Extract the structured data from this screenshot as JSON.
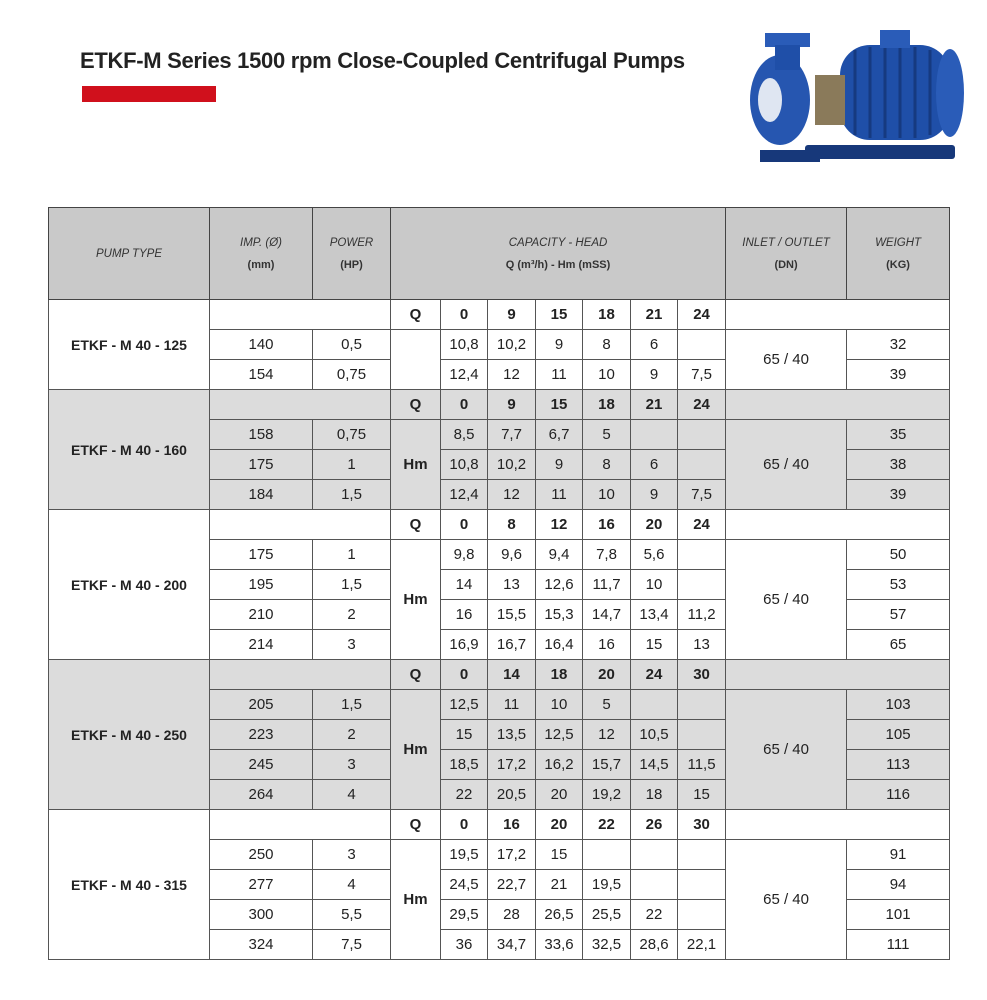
{
  "title": "ETKF-M Series 1500 rpm Close-Coupled Centrifugal Pumps",
  "colors": {
    "accent_bar": "#d0101c",
    "header_bg": "#c9c9c9",
    "alt_group_bg": "#dcdcdc",
    "pump_blue": "#1f4fa8"
  },
  "image": "centrifugal-pump-photo",
  "headers": {
    "pump_type": "PUMP TYPE",
    "imp": "IMP. (Ø)",
    "imp_unit": "(mm)",
    "power": "POWER",
    "power_unit": "(HP)",
    "capacity": "CAPACITY - HEAD",
    "capacity_unit": "Q (m³/h) - Hm (mSS)",
    "inlet": "INLET  / OUTLET",
    "inlet_unit": "(DN)",
    "weight": "WEIGHT",
    "weight_unit": "(KG)"
  },
  "q_label": "Q",
  "hm_label": "Hm",
  "groups": [
    {
      "type": "ETKF - M 40 - 125",
      "hm_shown": false,
      "q": [
        "0",
        "9",
        "15",
        "18",
        "21",
        "24"
      ],
      "dn": "65 / 40",
      "rows": [
        {
          "imp": "140",
          "hp": "0,5",
          "hm": [
            "10,8",
            "10,2",
            "9",
            "8",
            "6",
            ""
          ],
          "kg": "32"
        },
        {
          "imp": "154",
          "hp": "0,75",
          "hm": [
            "12,4",
            "12",
            "11",
            "10",
            "9",
            "7,5"
          ],
          "kg": "39"
        }
      ]
    },
    {
      "type": "ETKF - M 40 - 160",
      "hm_shown": true,
      "q": [
        "0",
        "9",
        "15",
        "18",
        "21",
        "24"
      ],
      "dn": "65 / 40",
      "rows": [
        {
          "imp": "158",
          "hp": "0,75",
          "hm": [
            "8,5",
            "7,7",
            "6,7",
            "5",
            "",
            ""
          ],
          "kg": "35"
        },
        {
          "imp": "175",
          "hp": "1",
          "hm": [
            "10,8",
            "10,2",
            "9",
            "8",
            "6",
            ""
          ],
          "kg": "38"
        },
        {
          "imp": "184",
          "hp": "1,5",
          "hm": [
            "12,4",
            "12",
            "11",
            "10",
            "9",
            "7,5"
          ],
          "kg": "39"
        }
      ]
    },
    {
      "type": "ETKF - M 40 - 200",
      "hm_shown": true,
      "q": [
        "0",
        "8",
        "12",
        "16",
        "20",
        "24"
      ],
      "dn": "65 / 40",
      "rows": [
        {
          "imp": "175",
          "hp": "1",
          "hm": [
            "9,8",
            "9,6",
            "9,4",
            "7,8",
            "5,6",
            ""
          ],
          "kg": "50"
        },
        {
          "imp": "195",
          "hp": "1,5",
          "hm": [
            "14",
            "13",
            "12,6",
            "11,7",
            "10",
            ""
          ],
          "kg": "53"
        },
        {
          "imp": "210",
          "hp": "2",
          "hm": [
            "16",
            "15,5",
            "15,3",
            "14,7",
            "13,4",
            "11,2"
          ],
          "kg": "57"
        },
        {
          "imp": "214",
          "hp": "3",
          "hm": [
            "16,9",
            "16,7",
            "16,4",
            "16",
            "15",
            "13"
          ],
          "kg": "65"
        }
      ]
    },
    {
      "type": "ETKF - M 40 - 250",
      "hm_shown": true,
      "q": [
        "0",
        "14",
        "18",
        "20",
        "24",
        "30"
      ],
      "dn": "65 / 40",
      "rows": [
        {
          "imp": "205",
          "hp": "1,5",
          "hm": [
            "12,5",
            "11",
            "10",
            "5",
            "",
            ""
          ],
          "kg": "103"
        },
        {
          "imp": "223",
          "hp": "2",
          "hm": [
            "15",
            "13,5",
            "12,5",
            "12",
            "10,5",
            ""
          ],
          "kg": "105"
        },
        {
          "imp": "245",
          "hp": "3",
          "hm": [
            "18,5",
            "17,2",
            "16,2",
            "15,7",
            "14,5",
            "11,5"
          ],
          "kg": "113"
        },
        {
          "imp": "264",
          "hp": "4",
          "hm": [
            "22",
            "20,5",
            "20",
            "19,2",
            "18",
            "15"
          ],
          "kg": "116"
        }
      ]
    },
    {
      "type": "ETKF - M 40 - 315",
      "hm_shown": true,
      "q": [
        "0",
        "16",
        "20",
        "22",
        "26",
        "30"
      ],
      "dn": "65 / 40",
      "rows": [
        {
          "imp": "250",
          "hp": "3",
          "hm": [
            "19,5",
            "17,2",
            "15",
            "",
            "",
            ""
          ],
          "kg": "91"
        },
        {
          "imp": "277",
          "hp": "4",
          "hm": [
            "24,5",
            "22,7",
            "21",
            "19,5",
            "",
            ""
          ],
          "kg": "94"
        },
        {
          "imp": "300",
          "hp": "5,5",
          "hm": [
            "29,5",
            "28",
            "26,5",
            "25,5",
            "22",
            ""
          ],
          "kg": "101"
        },
        {
          "imp": "324",
          "hp": "7,5",
          "hm": [
            "36",
            "34,7",
            "33,6",
            "32,5",
            "28,6",
            "22,1"
          ],
          "kg": "111"
        }
      ]
    }
  ]
}
